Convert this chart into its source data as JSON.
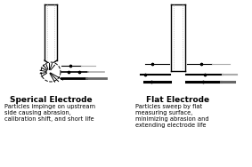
{
  "bg_color": "#ffffff",
  "title1": "Sperical Electrode",
  "title2": "Flat Electrode",
  "desc1": "Particles impinge on upstream\nside causing abrasion,\ncalibration shift, and short life",
  "desc2": "Particles sweep by flat\nmeasuring surface,\nminimizing abrasion and\nextending electrode life",
  "title_fontsize": 6.5,
  "desc_fontsize": 4.8
}
